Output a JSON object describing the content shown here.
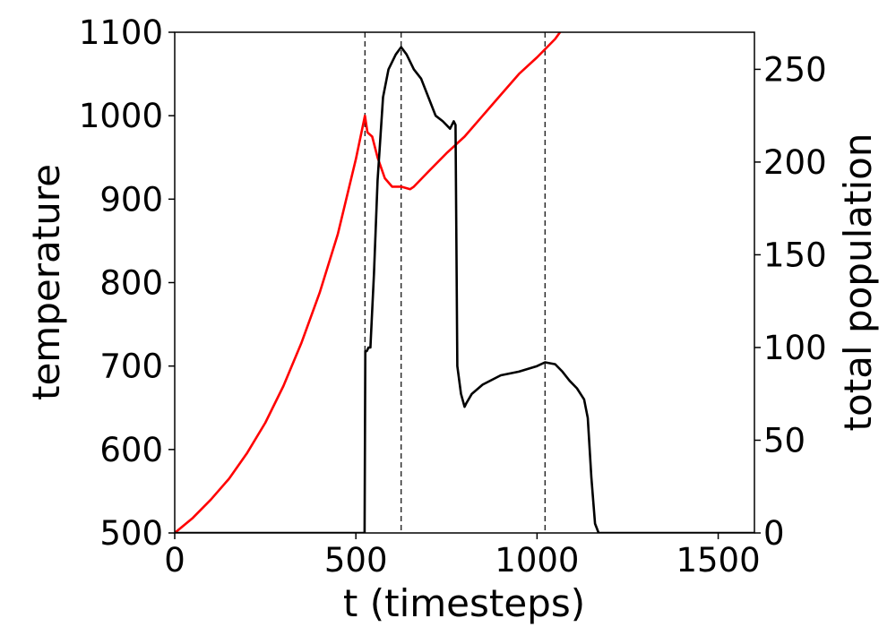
{
  "chart_data": {
    "type": "line",
    "xlabel": "t (timesteps)",
    "ylabel_left": "temperature",
    "ylabel_right": "total population",
    "xlim": [
      0,
      1600
    ],
    "ylim_left": [
      500,
      1100
    ],
    "ylim_right": [
      0,
      270
    ],
    "xticks": [
      0,
      500,
      1000,
      1500
    ],
    "yticks_left": [
      500,
      600,
      700,
      800,
      900,
      1000,
      1100
    ],
    "yticks_right": [
      0,
      50,
      100,
      150,
      200,
      250
    ],
    "grid": false,
    "vlines": [
      525,
      625,
      1022
    ],
    "series": [
      {
        "axis": "left",
        "color": "#ff0000",
        "x": [
          0,
          50,
          100,
          150,
          200,
          250,
          300,
          350,
          400,
          450,
          500,
          525,
          532,
          545,
          560,
          580,
          600,
          625,
          650,
          660,
          700,
          750,
          800,
          850,
          900,
          950,
          1000,
          1050,
          1080
        ],
        "y": [
          500,
          518,
          540,
          565,
          596,
          632,
          676,
          728,
          788,
          858,
          948,
          1000,
          980,
          975,
          950,
          925,
          915,
          915,
          912,
          915,
          933,
          955,
          975,
          1000,
          1025,
          1050,
          1070,
          1092,
          1110
        ]
      },
      {
        "axis": "right",
        "color": "#000000",
        "x": [
          0,
          524,
          526,
          530,
          535,
          540,
          550,
          560,
          575,
          590,
          610,
          625,
          640,
          660,
          680,
          700,
          720,
          740,
          760,
          770,
          775,
          780,
          790,
          800,
          805,
          820,
          850,
          900,
          950,
          1000,
          1022,
          1050,
          1070,
          1090,
          1110,
          1130,
          1140,
          1150,
          1160,
          1170,
          1600
        ],
        "y": [
          0,
          0,
          98,
          98,
          100,
          100,
          140,
          190,
          235,
          250,
          258,
          262,
          258,
          250,
          245,
          235,
          225,
          222,
          218,
          222,
          220,
          90,
          75,
          68,
          70,
          75,
          80,
          85,
          87,
          90,
          92,
          91,
          87,
          82,
          78,
          72,
          62,
          30,
          5,
          0,
          0
        ]
      }
    ]
  }
}
